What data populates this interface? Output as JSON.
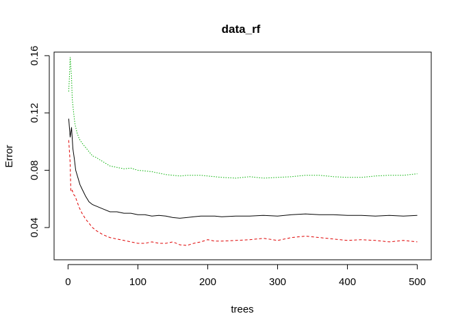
{
  "chart_data": {
    "type": "line",
    "title": "data_rf",
    "xlabel": "trees",
    "ylabel": "Error",
    "xlim": [
      -20,
      520
    ],
    "ylim": [
      0.0175,
      0.1625
    ],
    "xticks": [
      0,
      100,
      200,
      300,
      400,
      500
    ],
    "yticks": [
      0.04,
      0.08,
      0.12,
      0.16
    ],
    "xtick_labels": [
      "0",
      "100",
      "200",
      "300",
      "400",
      "500"
    ],
    "ytick_labels": [
      "0.04",
      "0.08",
      "0.12",
      "0.16"
    ],
    "grid": false,
    "legend": "none",
    "series": [
      {
        "color": "#000000",
        "dash": "solid",
        "points": [
          [
            1,
            0.116
          ],
          [
            3,
            0.103
          ],
          [
            5,
            0.11
          ],
          [
            7,
            0.095
          ],
          [
            9,
            0.088
          ],
          [
            11,
            0.08
          ],
          [
            14,
            0.075
          ],
          [
            17,
            0.07
          ],
          [
            20,
            0.067
          ],
          [
            25,
            0.062
          ],
          [
            30,
            0.058
          ],
          [
            35,
            0.056
          ],
          [
            40,
            0.055
          ],
          [
            50,
            0.053
          ],
          [
            60,
            0.051
          ],
          [
            70,
            0.051
          ],
          [
            80,
            0.05
          ],
          [
            90,
            0.05
          ],
          [
            100,
            0.049
          ],
          [
            110,
            0.049
          ],
          [
            120,
            0.048
          ],
          [
            130,
            0.0485
          ],
          [
            140,
            0.048
          ],
          [
            150,
            0.047
          ],
          [
            160,
            0.0465
          ],
          [
            170,
            0.047
          ],
          [
            180,
            0.0475
          ],
          [
            190,
            0.048
          ],
          [
            200,
            0.048
          ],
          [
            210,
            0.048
          ],
          [
            220,
            0.0475
          ],
          [
            240,
            0.048
          ],
          [
            260,
            0.048
          ],
          [
            280,
            0.0485
          ],
          [
            300,
            0.048
          ],
          [
            320,
            0.049
          ],
          [
            340,
            0.0495
          ],
          [
            360,
            0.049
          ],
          [
            380,
            0.049
          ],
          [
            400,
            0.0485
          ],
          [
            420,
            0.0485
          ],
          [
            440,
            0.048
          ],
          [
            460,
            0.0485
          ],
          [
            480,
            0.048
          ],
          [
            500,
            0.0485
          ]
        ]
      },
      {
        "color": "#df0000",
        "dash": "dashed",
        "points": [
          [
            1,
            0.101
          ],
          [
            3,
            0.085
          ],
          [
            4,
            0.065
          ],
          [
            6,
            0.066
          ],
          [
            8,
            0.063
          ],
          [
            10,
            0.062
          ],
          [
            13,
            0.058
          ],
          [
            16,
            0.054
          ],
          [
            20,
            0.05
          ],
          [
            25,
            0.046
          ],
          [
            30,
            0.043
          ],
          [
            35,
            0.04
          ],
          [
            40,
            0.038
          ],
          [
            50,
            0.035
          ],
          [
            60,
            0.033
          ],
          [
            70,
            0.032
          ],
          [
            80,
            0.031
          ],
          [
            90,
            0.03
          ],
          [
            100,
            0.029
          ],
          [
            110,
            0.029
          ],
          [
            120,
            0.03
          ],
          [
            130,
            0.029
          ],
          [
            140,
            0.029
          ],
          [
            150,
            0.03
          ],
          [
            160,
            0.028
          ],
          [
            170,
            0.0275
          ],
          [
            180,
            0.029
          ],
          [
            190,
            0.03
          ],
          [
            200,
            0.0315
          ],
          [
            210,
            0.0305
          ],
          [
            220,
            0.0305
          ],
          [
            240,
            0.031
          ],
          [
            260,
            0.0315
          ],
          [
            280,
            0.0325
          ],
          [
            300,
            0.031
          ],
          [
            320,
            0.033
          ],
          [
            340,
            0.034
          ],
          [
            360,
            0.033
          ],
          [
            380,
            0.032
          ],
          [
            400,
            0.031
          ],
          [
            420,
            0.0315
          ],
          [
            440,
            0.031
          ],
          [
            460,
            0.03
          ],
          [
            480,
            0.031
          ],
          [
            500,
            0.03
          ]
        ]
      },
      {
        "color": "#00b000",
        "dash": "dotted",
        "points": [
          [
            1,
            0.135
          ],
          [
            2,
            0.145
          ],
          [
            3,
            0.159
          ],
          [
            4,
            0.152
          ],
          [
            5,
            0.145
          ],
          [
            6,
            0.13
          ],
          [
            8,
            0.12
          ],
          [
            10,
            0.112
          ],
          [
            13,
            0.106
          ],
          [
            16,
            0.102
          ],
          [
            20,
            0.099
          ],
          [
            25,
            0.096
          ],
          [
            30,
            0.093
          ],
          [
            35,
            0.09
          ],
          [
            40,
            0.089
          ],
          [
            50,
            0.086
          ],
          [
            60,
            0.083
          ],
          [
            70,
            0.082
          ],
          [
            80,
            0.081
          ],
          [
            90,
            0.0815
          ],
          [
            100,
            0.08
          ],
          [
            110,
            0.0795
          ],
          [
            120,
            0.079
          ],
          [
            130,
            0.078
          ],
          [
            140,
            0.077
          ],
          [
            150,
            0.0765
          ],
          [
            160,
            0.076
          ],
          [
            170,
            0.0765
          ],
          [
            180,
            0.0765
          ],
          [
            190,
            0.0765
          ],
          [
            200,
            0.076
          ],
          [
            220,
            0.075
          ],
          [
            240,
            0.0745
          ],
          [
            260,
            0.0755
          ],
          [
            280,
            0.0745
          ],
          [
            300,
            0.075
          ],
          [
            320,
            0.0755
          ],
          [
            340,
            0.0765
          ],
          [
            360,
            0.0765
          ],
          [
            380,
            0.0755
          ],
          [
            400,
            0.075
          ],
          [
            420,
            0.075
          ],
          [
            440,
            0.076
          ],
          [
            460,
            0.0765
          ],
          [
            480,
            0.0765
          ],
          [
            500,
            0.0775
          ]
        ]
      }
    ]
  }
}
